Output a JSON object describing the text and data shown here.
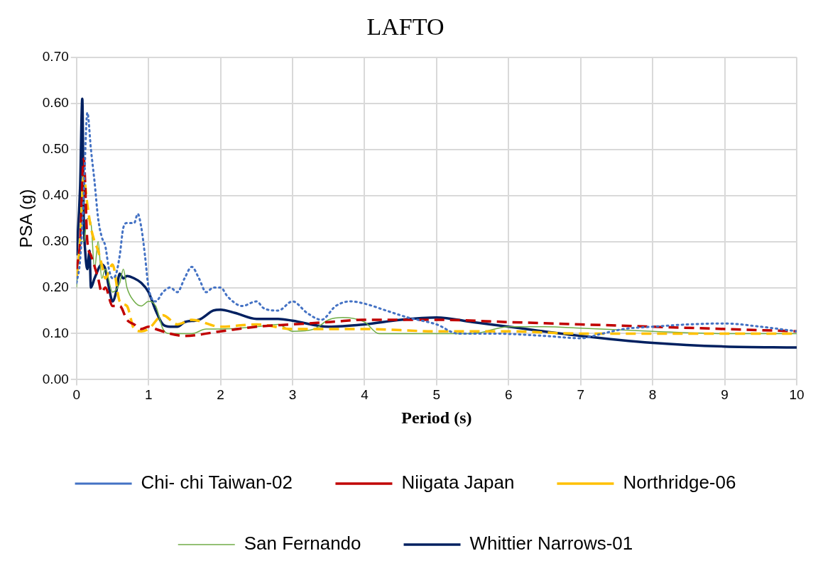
{
  "chart_data": {
    "type": "line",
    "title": "LAFTO",
    "xlabel": "Period (s)",
    "ylabel": "PSA (g)",
    "xlim": [
      0,
      10
    ],
    "xticks": [
      0,
      1,
      2,
      3,
      4,
      5,
      6,
      7,
      8,
      9,
      10
    ],
    "ylim": [
      0,
      0.7
    ],
    "yticks": [
      {
        "value": 0,
        "label": "0.00"
      },
      {
        "value": 0.1,
        "label": "0.10"
      },
      {
        "value": 0.2,
        "label": "0.20"
      },
      {
        "value": 0.3,
        "label": "0.30"
      },
      {
        "value": 0.4,
        "label": "0.40"
      },
      {
        "value": 0.5,
        "label": "0.50"
      },
      {
        "value": 0.6,
        "label": "0.60"
      },
      {
        "value": 0.7,
        "label": "0.70"
      }
    ],
    "grid": true,
    "legend": "bottom",
    "marker": "none",
    "series": [
      {
        "name": "Chi- chi Taiwan-02",
        "color": "#4472c4",
        "line_style": "dotted",
        "x": [
          0,
          0.05,
          0.1,
          0.15,
          0.2,
          0.25,
          0.3,
          0.35,
          0.4,
          0.45,
          0.5,
          0.55,
          0.6,
          0.65,
          0.7,
          0.8,
          0.85,
          0.9,
          0.95,
          1.0,
          1.1,
          1.2,
          1.3,
          1.4,
          1.5,
          1.6,
          1.7,
          1.8,
          1.9,
          2.0,
          2.1,
          2.3,
          2.5,
          2.6,
          2.8,
          3.0,
          3.2,
          3.4,
          3.6,
          3.8,
          4.0,
          4.3,
          4.6,
          5.0,
          5.3,
          5.8,
          6.5,
          7.0,
          7.3,
          7.6,
          8.0,
          8.5,
          9.0,
          9.5,
          10
        ],
        "values": [
          0.21,
          0.26,
          0.4,
          0.58,
          0.5,
          0.43,
          0.35,
          0.31,
          0.29,
          0.24,
          0.22,
          0.23,
          0.27,
          0.33,
          0.34,
          0.34,
          0.36,
          0.33,
          0.27,
          0.2,
          0.17,
          0.19,
          0.2,
          0.19,
          0.22,
          0.245,
          0.22,
          0.19,
          0.2,
          0.2,
          0.18,
          0.16,
          0.17,
          0.155,
          0.15,
          0.17,
          0.145,
          0.13,
          0.16,
          0.17,
          0.165,
          0.15,
          0.135,
          0.12,
          0.1,
          0.1,
          0.095,
          0.09,
          0.1,
          0.11,
          0.115,
          0.12,
          0.122,
          0.115,
          0.105
        ]
      },
      {
        "name": "Niigata Japan",
        "color": "#c00000",
        "line_style": "dashed",
        "x": [
          0,
          0.05,
          0.1,
          0.15,
          0.2,
          0.3,
          0.35,
          0.4,
          0.5,
          0.6,
          0.7,
          0.8,
          0.9,
          1.0,
          1.1,
          1.3,
          1.5,
          2.0,
          2.5,
          3.0,
          3.5,
          4.0,
          5.0,
          6.0,
          7.0,
          8.0,
          9.0,
          10
        ],
        "values": [
          0.24,
          0.3,
          0.48,
          0.3,
          0.27,
          0.22,
          0.19,
          0.2,
          0.16,
          0.16,
          0.13,
          0.12,
          0.11,
          0.115,
          0.11,
          0.1,
          0.095,
          0.105,
          0.115,
          0.12,
          0.125,
          0.13,
          0.13,
          0.125,
          0.12,
          0.115,
          0.11,
          0.105
        ]
      },
      {
        "name": "Northridge-06",
        "color": "#ffc000",
        "line_style": "dashed",
        "x": [
          0,
          0.05,
          0.1,
          0.15,
          0.2,
          0.25,
          0.3,
          0.35,
          0.4,
          0.5,
          0.6,
          0.7,
          0.8,
          0.9,
          1.0,
          1.2,
          1.4,
          1.6,
          2.0,
          2.5,
          3.0,
          3.5,
          4.0,
          5.0,
          6.0,
          7.0,
          8.0,
          9.0,
          10
        ],
        "values": [
          0.22,
          0.3,
          0.44,
          0.38,
          0.33,
          0.3,
          0.28,
          0.25,
          0.22,
          0.25,
          0.17,
          0.16,
          0.11,
          0.105,
          0.11,
          0.14,
          0.12,
          0.13,
          0.115,
          0.12,
          0.11,
          0.11,
          0.11,
          0.105,
          0.105,
          0.1,
          0.1,
          0.1,
          0.1
        ]
      },
      {
        "name": "San Fernando",
        "color": "#70ad47",
        "line_style": "solid",
        "x": [
          0,
          0.05,
          0.1,
          0.15,
          0.2,
          0.25,
          0.3,
          0.35,
          0.4,
          0.5,
          0.6,
          0.65,
          0.7,
          0.8,
          0.9,
          1.0,
          1.1,
          1.2,
          1.3,
          1.4,
          1.6,
          1.8,
          2.0,
          2.5,
          2.8,
          3.0,
          3.3,
          3.5,
          3.7,
          4.0,
          4.2,
          5.0,
          5.5,
          6.0,
          6.5,
          7.0,
          8.0,
          9.0,
          10
        ],
        "values": [
          0.2,
          0.3,
          0.3,
          0.35,
          0.34,
          0.24,
          0.3,
          0.22,
          0.24,
          0.19,
          0.21,
          0.24,
          0.2,
          0.17,
          0.16,
          0.17,
          0.16,
          0.11,
          0.1,
          0.1,
          0.1,
          0.11,
          0.11,
          0.115,
          0.12,
          0.105,
          0.11,
          0.13,
          0.135,
          0.125,
          0.1,
          0.1,
          0.1,
          0.115,
          0.115,
          0.112,
          0.105,
          0.1,
          0.1
        ]
      },
      {
        "name": "Whittier Narrows-01",
        "color": "#002060",
        "line_style": "solid",
        "x": [
          0,
          0.05,
          0.08,
          0.1,
          0.12,
          0.15,
          0.18,
          0.2,
          0.25,
          0.35,
          0.4,
          0.45,
          0.5,
          0.55,
          0.6,
          0.65,
          0.7,
          0.8,
          0.9,
          1.0,
          1.1,
          1.2,
          1.3,
          1.4,
          1.5,
          1.7,
          1.9,
          2.0,
          2.2,
          2.5,
          2.8,
          3.0,
          3.5,
          4.0,
          4.5,
          5.0,
          5.5,
          6.0,
          7.0,
          8.0,
          9.0,
          10
        ],
        "values": [
          0.27,
          0.42,
          0.61,
          0.35,
          0.28,
          0.24,
          0.28,
          0.2,
          0.22,
          0.25,
          0.24,
          0.2,
          0.17,
          0.19,
          0.23,
          0.22,
          0.225,
          0.22,
          0.21,
          0.19,
          0.15,
          0.12,
          0.115,
          0.115,
          0.125,
          0.13,
          0.15,
          0.152,
          0.145,
          0.132,
          0.132,
          0.128,
          0.115,
          0.12,
          0.13,
          0.135,
          0.125,
          0.115,
          0.095,
          0.08,
          0.072,
          0.07
        ]
      }
    ]
  }
}
